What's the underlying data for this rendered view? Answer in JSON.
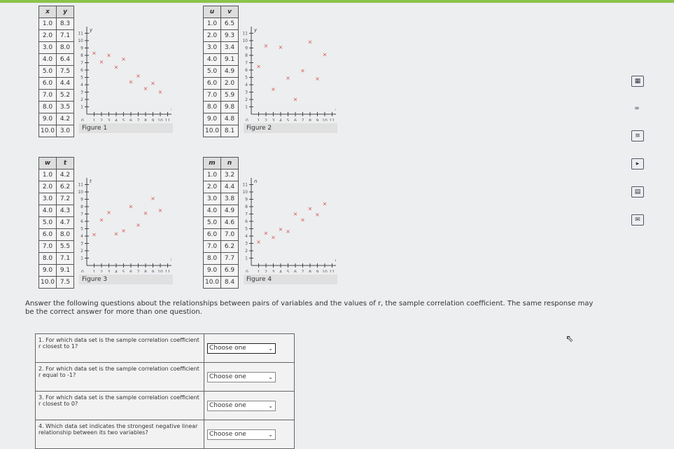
{
  "figures": [
    {
      "label": "Figure 1",
      "xname": "x",
      "yname": "y",
      "axis_x": "x",
      "axis_y": "y",
      "x": [
        1.0,
        2.0,
        3.0,
        4.0,
        5.0,
        6.0,
        7.0,
        8.0,
        9.0,
        10.0
      ],
      "xs": [
        "1.0",
        "2.0",
        "3.0",
        "4.0",
        "5.0",
        "6.0",
        "7.0",
        "8.0",
        "9.0",
        "10.0"
      ],
      "ys": [
        "8.3",
        "7.1",
        "8.0",
        "6.4",
        "7.5",
        "4.4",
        "5.2",
        "3.5",
        "4.2",
        "3.0"
      ]
    },
    {
      "label": "Figure 2",
      "xname": "u",
      "yname": "v",
      "axis_x": "x",
      "axis_y": "y",
      "xs": [
        "1.0",
        "2.0",
        "3.0",
        "4.0",
        "5.0",
        "6.0",
        "7.0",
        "8.0",
        "9.0",
        "10.0"
      ],
      "ys": [
        "6.5",
        "9.3",
        "3.4",
        "9.1",
        "4.9",
        "2.0",
        "5.9",
        "9.8",
        "4.8",
        "8.1"
      ]
    },
    {
      "label": "Figure 3",
      "xname": "w",
      "yname": "t",
      "axis_x": "w",
      "axis_y": "t",
      "xs": [
        "1.0",
        "2.0",
        "3.0",
        "4.0",
        "5.0",
        "6.0",
        "7.0",
        "8.0",
        "9.0",
        "10.0"
      ],
      "ys": [
        "4.2",
        "6.2",
        "7.2",
        "4.3",
        "4.7",
        "8.0",
        "5.5",
        "7.1",
        "9.1",
        "7.5"
      ]
    },
    {
      "label": "Figure 4",
      "xname": "m",
      "yname": "n",
      "axis_x": "m",
      "axis_y": "n",
      "xs": [
        "1.0",
        "2.0",
        "3.0",
        "4.0",
        "5.0",
        "6.0",
        "7.0",
        "8.0",
        "9.0",
        "10.0"
      ],
      "ys": [
        "3.2",
        "4.4",
        "3.8",
        "4.9",
        "4.6",
        "7.0",
        "6.2",
        "7.7",
        "6.9",
        "8.4"
      ]
    }
  ],
  "chart_style": {
    "marker_color": "#d9534f",
    "axis_range": [
      0,
      11
    ]
  },
  "prompt": "Answer the following questions about the relationships between pairs of variables and the values of r, the sample correlation coefficient. The same response may be the correct answer for more than one question.",
  "questions": [
    {
      "text": "1. For which data set is the sample correlation coefficient r closest to 1?",
      "value": "Choose one"
    },
    {
      "text": "2. For which data set is the sample correlation coefficient r equal to -1?",
      "value": "Choose one"
    },
    {
      "text": "3. For which data set is the sample correlation coefficient r closest to 0?",
      "value": "Choose one"
    },
    {
      "text": "4. Which data set indicates the strongest negative linear relationship between its two variables?",
      "value": "Choose one"
    }
  ],
  "sidebar_icons": [
    "calculator-icon",
    "infinity-icon",
    "checklist-icon",
    "play-icon",
    "grid-icon",
    "mail-icon"
  ]
}
